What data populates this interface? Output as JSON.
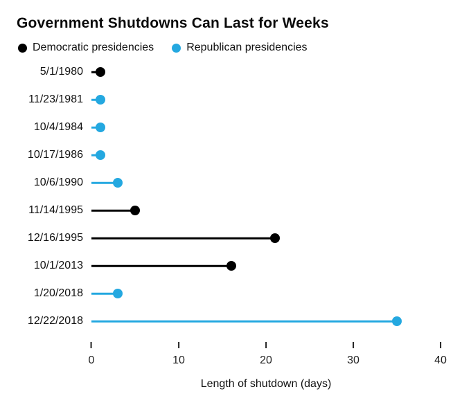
{
  "chart_data": {
    "type": "bar",
    "style": "horizontal-lollipop",
    "title": "Government Shutdowns Can Last for Weeks",
    "xlabel": "Length of shutdown (days)",
    "ylabel": "",
    "xlim": [
      0,
      40
    ],
    "xticks": [
      0,
      10,
      20,
      30,
      40
    ],
    "grid": false,
    "legend_position": "top",
    "colors": {
      "democratic": "#000000",
      "republican": "#24a8e0"
    },
    "legend": [
      {
        "label": "Democratic presidencies",
        "party": "democratic",
        "color": "#000000"
      },
      {
        "label": "Republican presidencies",
        "party": "republican",
        "color": "#24a8e0"
      }
    ],
    "points": [
      {
        "date": "5/1/1980",
        "days": 1,
        "party": "democratic"
      },
      {
        "date": "11/23/1981",
        "days": 1,
        "party": "republican"
      },
      {
        "date": "10/4/1984",
        "days": 1,
        "party": "republican"
      },
      {
        "date": "10/17/1986",
        "days": 1,
        "party": "republican"
      },
      {
        "date": "10/6/1990",
        "days": 3,
        "party": "republican"
      },
      {
        "date": "11/14/1995",
        "days": 5,
        "party": "democratic"
      },
      {
        "date": "12/16/1995",
        "days": 21,
        "party": "democratic"
      },
      {
        "date": "10/1/2013",
        "days": 16,
        "party": "democratic"
      },
      {
        "date": "1/20/2018",
        "days": 3,
        "party": "republican"
      },
      {
        "date": "12/22/2018",
        "days": 35,
        "party": "republican"
      }
    ]
  }
}
